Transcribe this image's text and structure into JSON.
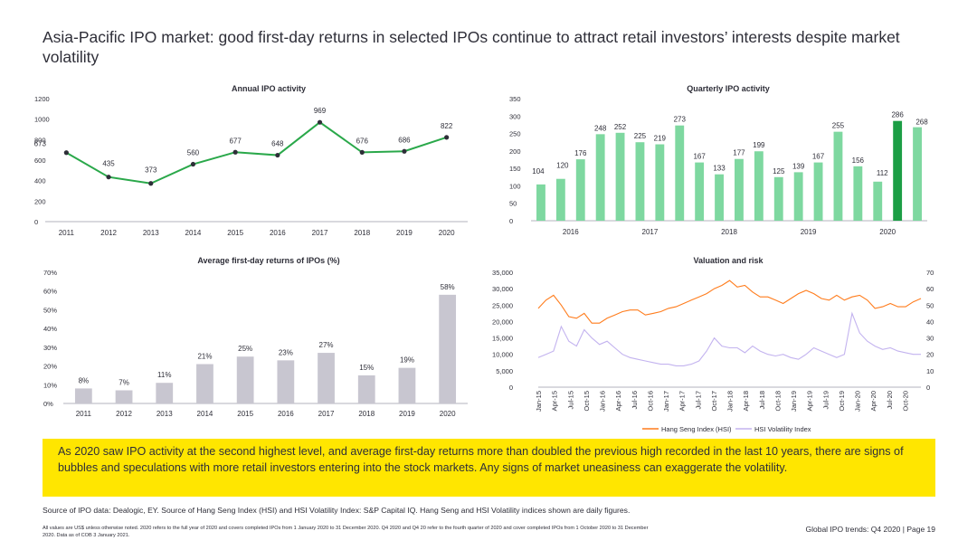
{
  "page": {
    "title": "Asia-Pacific IPO market: good first-day returns in selected IPOs continue to attract retail investors’ interests despite market volatility",
    "banner": "As 2020 saw IPO activity at the second highest level, and average first-day returns more than doubled the previous high recorded in the last 10 years, there are signs of bubbles and speculations with more retail investors entering into the stock markets. Any signs of market uneasiness can exaggerate the volatility.",
    "source": "Source of IPO data: Dealogic, EY. Source of Hang Seng Index (HSI) and HSI Volatility Index: S&P Capital IQ. Hang Seng and HSI Volatility indices shown are daily figures.",
    "notes": "All values are US$ unless otherwise noted. 2020 refers to the full year of 2020 and covers completed IPOs from 1 January 2020 to 31 December 2020. Q4 2020 and Q4 20 refer to the fourth quarter of 2020 and cover completed IPOs from 1 October 2020 to 31 December 2020. Data as of COB 3 January 2021.",
    "footer": "Global IPO trends: Q4 2020 | Page 19"
  },
  "colors": {
    "line_green": "#2aa84a",
    "bar_light_green": "#7ed8a0",
    "bar_dark_green": "#1c9e45",
    "bar_grey": "#c8c6d0",
    "hsi_orange": "#ff7c1c",
    "vol_purple": "#c3b3ef",
    "banner_yellow": "#ffe600"
  },
  "chart_data": [
    {
      "id": "annual",
      "type": "line",
      "title": "Annual IPO activity",
      "categories": [
        "2011",
        "2012",
        "2013",
        "2014",
        "2015",
        "2016",
        "2017",
        "2018",
        "2019",
        "2020"
      ],
      "values": [
        673,
        435,
        373,
        560,
        677,
        648,
        969,
        676,
        686,
        822
      ],
      "labels": [
        "673",
        "435",
        "373",
        "560",
        "677",
        "648",
        "969",
        "676",
        "686",
        "822"
      ],
      "ylim": [
        0,
        1200
      ],
      "yticks": [
        0,
        200,
        400,
        600,
        800,
        1000,
        1200
      ],
      "ytick_labels": [
        "0",
        "200",
        "400",
        "600",
        "800",
        "1000",
        "1200"
      ]
    },
    {
      "id": "quarterly",
      "type": "bar",
      "title": "Quarterly IPO activity",
      "values": [
        104,
        120,
        176,
        248,
        252,
        225,
        219,
        273,
        167,
        133,
        177,
        199,
        125,
        139,
        167,
        255,
        156,
        112,
        286,
        268
      ],
      "labels": [
        "104",
        "120",
        "176",
        "248",
        "252",
        "225",
        "219",
        "273",
        "167",
        "133",
        "177",
        "199",
        "125",
        "139",
        "167",
        "255",
        "156",
        "112",
        "286",
        "268"
      ],
      "highlight_index": 18,
      "year_labels": [
        "2016",
        "2017",
        "2018",
        "2019",
        "2020"
      ],
      "ylim": [
        0,
        350
      ],
      "yticks": [
        0,
        50,
        100,
        150,
        200,
        250,
        300,
        350
      ],
      "ytick_labels": [
        "0",
        "50",
        "100",
        "150",
        "200",
        "250",
        "300",
        "350"
      ]
    },
    {
      "id": "returns",
      "type": "bar",
      "title": "Average first-day returns of IPOs (%)",
      "categories": [
        "2011",
        "2012",
        "2013",
        "2014",
        "2015",
        "2016",
        "2017",
        "2018",
        "2019",
        "2020"
      ],
      "values": [
        8,
        7,
        11,
        21,
        25,
        23,
        27,
        15,
        19,
        58
      ],
      "labels": [
        "8%",
        "7%",
        "11%",
        "21%",
        "25%",
        "23%",
        "27%",
        "15%",
        "19%",
        "58%"
      ],
      "ylim": [
        0,
        70
      ],
      "yticks": [
        0,
        10,
        20,
        30,
        40,
        50,
        60,
        70
      ],
      "ytick_labels": [
        "0%",
        "10%",
        "20%",
        "30%",
        "40%",
        "50%",
        "60%",
        "70%"
      ]
    },
    {
      "id": "valuation",
      "type": "line",
      "title": "Valuation and risk",
      "x_labels": [
        "Jan-15",
        "Apr-15",
        "Jul-15",
        "Oct-15",
        "Jan-16",
        "Apr-16",
        "Jul-16",
        "Oct-16",
        "Jan-17",
        "Apr-17",
        "Jul-17",
        "Oct-17",
        "Jan-18",
        "Apr-18",
        "Jul-18",
        "Oct-18",
        "Jan-19",
        "Apr-19",
        "Jul-19",
        "Oct-19",
        "Jan-20",
        "Apr-20",
        "Jul-20",
        "Oct-20"
      ],
      "ylim_left": [
        0,
        35000
      ],
      "yticks_left": [
        0,
        5000,
        10000,
        15000,
        20000,
        25000,
        30000,
        35000
      ],
      "ytick_labels_left": [
        "0",
        "5,000",
        "10,000",
        "15,000",
        "20,000",
        "25,000",
        "30,000",
        "35,000"
      ],
      "ylim_right": [
        0,
        70
      ],
      "yticks_right": [
        0,
        10,
        20,
        30,
        40,
        50,
        60,
        70
      ],
      "ytick_labels_right": [
        "0",
        "10",
        "20",
        "30",
        "40",
        "50",
        "60",
        "70"
      ],
      "series": [
        {
          "name": "Hang Seng Index (HSI)",
          "axis": "left",
          "values": [
            24000,
            26500,
            28000,
            25000,
            21500,
            21000,
            22500,
            19500,
            19500,
            21000,
            22000,
            23000,
            23500,
            23500,
            22000,
            22500,
            23000,
            24000,
            24500,
            25500,
            26500,
            27500,
            28500,
            30000,
            31000,
            32500,
            30500,
            31000,
            29000,
            27500,
            27500,
            26500,
            25500,
            27000,
            28500,
            29500,
            28500,
            27000,
            26500,
            28000,
            26500,
            27500,
            28000,
            26500,
            24000,
            24500,
            25500,
            24500,
            24500,
            26000,
            27000
          ]
        },
        {
          "name": "HSI Volatility Index",
          "axis": "right",
          "values": [
            18,
            20,
            22,
            37,
            28,
            25,
            35,
            30,
            26,
            28,
            24,
            20,
            18,
            17,
            16,
            15,
            14,
            14,
            13,
            13,
            14,
            16,
            22,
            30,
            25,
            24,
            24,
            21,
            25,
            22,
            20,
            19,
            20,
            18,
            17,
            20,
            24,
            22,
            20,
            18,
            20,
            45,
            33,
            28,
            25,
            23,
            24,
            22,
            21,
            20,
            20
          ]
        }
      ]
    }
  ]
}
